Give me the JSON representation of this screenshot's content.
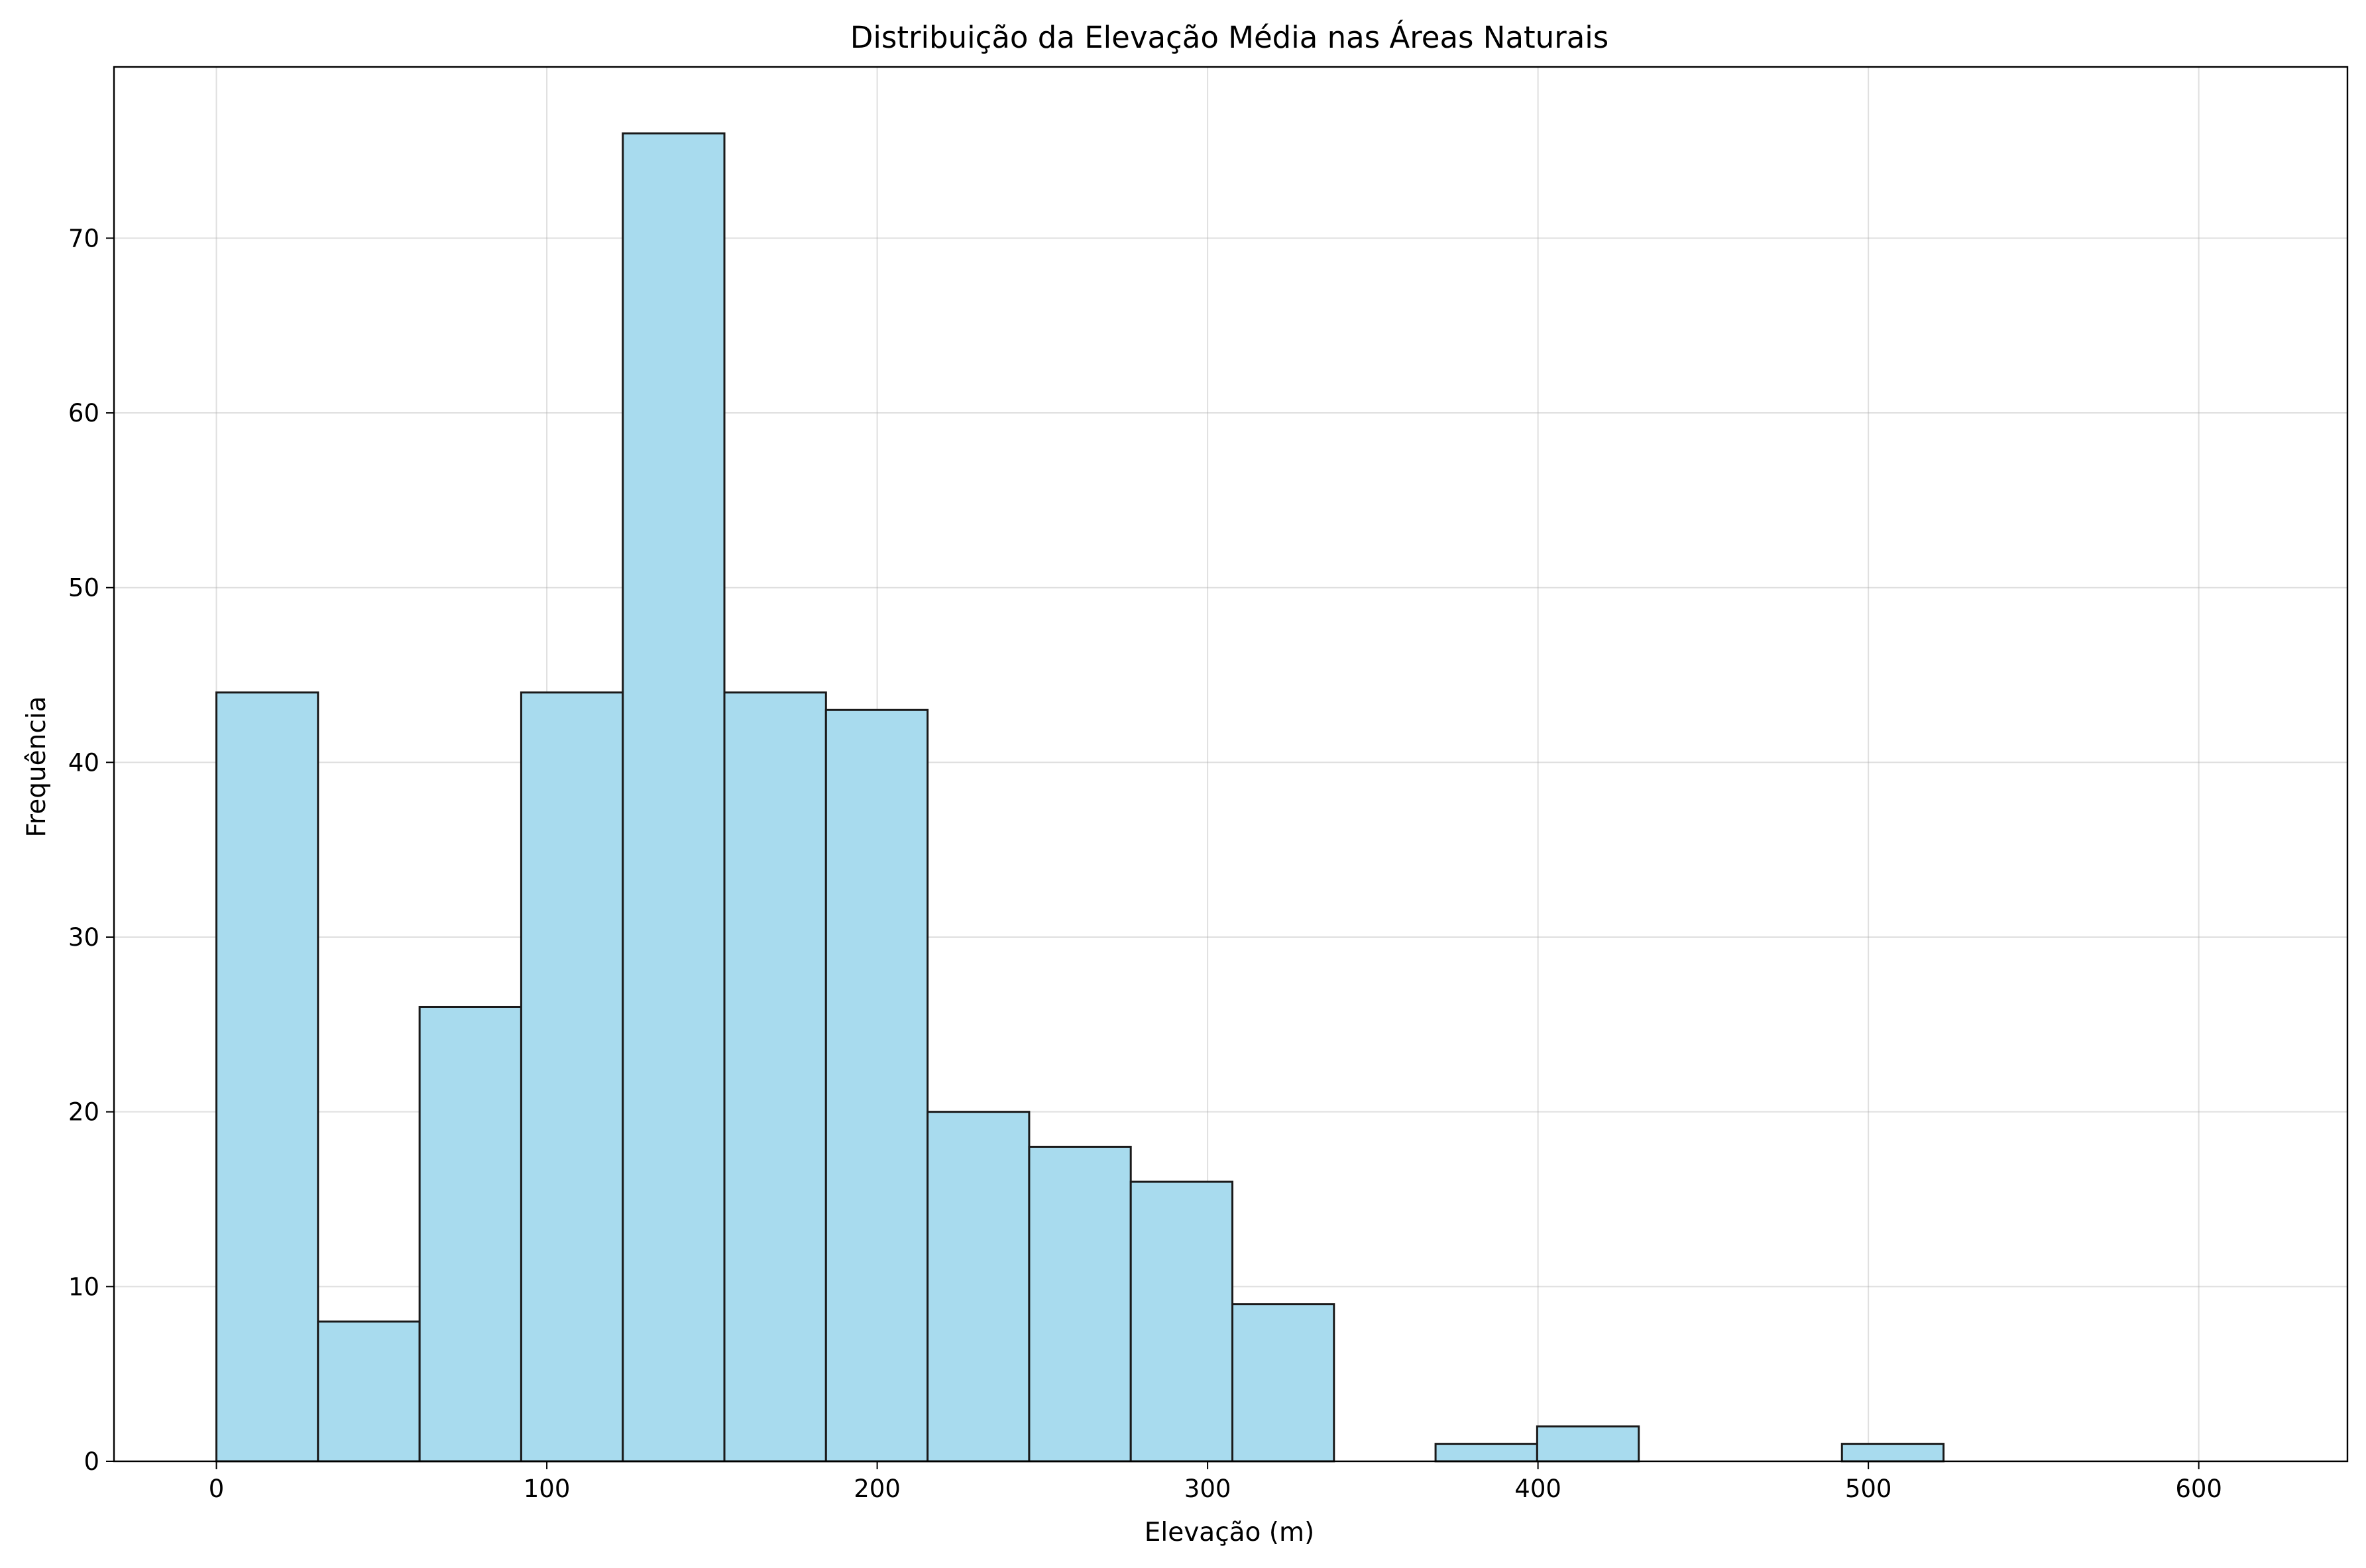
{
  "chart_data": {
    "type": "bar",
    "subtype": "histogram",
    "title": "Distribuição da Elevação Média nas Áreas Naturais",
    "xlabel": "Elevação (m)",
    "ylabel": "Frequência",
    "xlim": [
      -31,
      645
    ],
    "ylim": [
      0,
      79.8
    ],
    "xticks": [
      0,
      100,
      200,
      300,
      400,
      500,
      600
    ],
    "yticks": [
      0,
      10,
      20,
      30,
      40,
      50,
      60,
      70
    ],
    "bin_start": 0,
    "bin_width": 30.75,
    "counts": [
      44,
      8,
      26,
      44,
      76,
      44,
      43,
      20,
      18,
      16,
      9,
      0,
      1,
      2,
      0,
      0,
      1,
      0,
      0,
      0
    ],
    "grid": true,
    "legend": "none",
    "bar_color": "#a8dbee",
    "edge_color": "#1a1a1a"
  }
}
